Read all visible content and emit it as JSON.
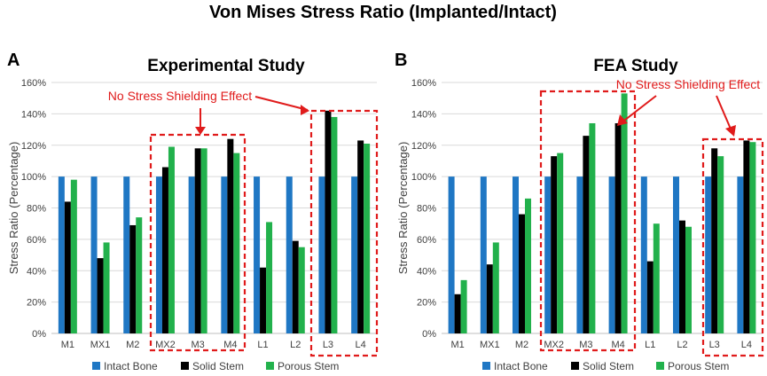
{
  "figure": {
    "title": "Von Mises Stress Ratio (Implanted/Intact)"
  },
  "colors": {
    "intact": "#1f77c4",
    "solid": "#000000",
    "porous": "#22b14c",
    "annotation": "#e01b1b"
  },
  "chart_data": [
    {
      "panel_label": "A",
      "type": "bar",
      "title": "Experimental Study",
      "xlabel": "",
      "ylabel": "Stress Ratio (Percentage)",
      "ylim": [
        0,
        160
      ],
      "yticks": [
        "0%",
        "20%",
        "40%",
        "60%",
        "80%",
        "100%",
        "120%",
        "140%",
        "160%"
      ],
      "grid": true,
      "legend_position": "bottom",
      "categories": [
        "M1",
        "MX1",
        "M2",
        "MX2",
        "M3",
        "M4",
        "L1",
        "L2",
        "L3",
        "L4"
      ],
      "series": [
        {
          "name": "Intact Bone",
          "values": [
            100,
            100,
            100,
            100,
            100,
            100,
            100,
            100,
            100,
            100
          ]
        },
        {
          "name": "Solid Stem",
          "values": [
            84,
            48,
            69,
            106,
            118,
            124,
            42,
            59,
            142,
            123
          ]
        },
        {
          "name": "Porous Stem",
          "values": [
            98,
            58,
            74,
            119,
            118,
            115,
            71,
            55,
            138,
            121
          ]
        }
      ],
      "annotation": {
        "text": "No Stress Shielding Effect",
        "boxed_groups": [
          [
            "MX2",
            "M3",
            "M4"
          ],
          [
            "L3",
            "L4"
          ]
        ]
      }
    },
    {
      "panel_label": "B",
      "type": "bar",
      "title": "FEA Study",
      "xlabel": "",
      "ylabel": "Stress Ratio (Percentage)",
      "ylim": [
        0,
        160
      ],
      "yticks": [
        "0%",
        "20%",
        "40%",
        "60%",
        "80%",
        "100%",
        "120%",
        "140%",
        "160%"
      ],
      "grid": true,
      "legend_position": "bottom",
      "categories": [
        "M1",
        "MX1",
        "M2",
        "MX2",
        "M3",
        "M4",
        "L1",
        "L2",
        "L3",
        "L4"
      ],
      "series": [
        {
          "name": "Intact Bone",
          "values": [
            100,
            100,
            100,
            100,
            100,
            100,
            100,
            100,
            100,
            100
          ]
        },
        {
          "name": "Solid Stem",
          "values": [
            25,
            44,
            76,
            113,
            126,
            134,
            46,
            72,
            118,
            123
          ]
        },
        {
          "name": "Porous Stem",
          "values": [
            34,
            58,
            86,
            115,
            134,
            153,
            70,
            68,
            113,
            122
          ]
        }
      ],
      "annotation": {
        "text": "No Stress Shielding Effect",
        "boxed_groups": [
          [
            "MX2",
            "M3",
            "M4"
          ],
          [
            "L3",
            "L4"
          ]
        ]
      }
    }
  ]
}
